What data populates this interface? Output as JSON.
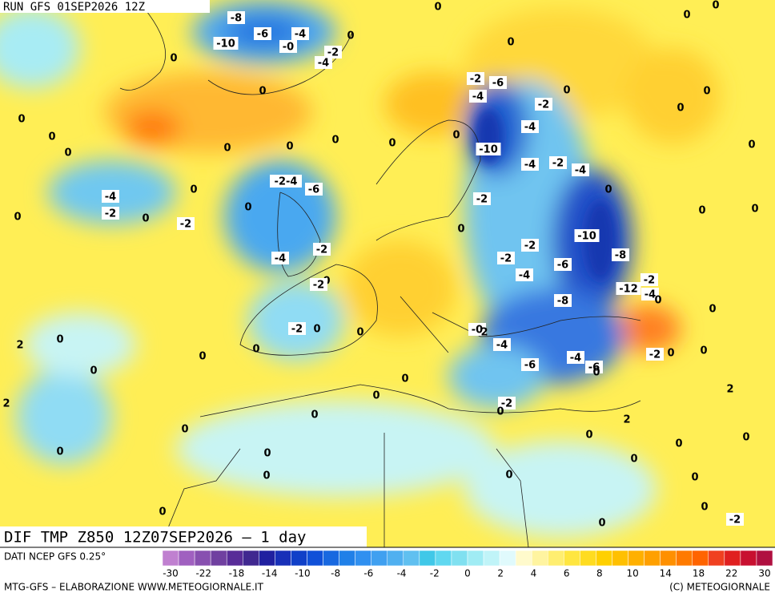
{
  "header": {
    "run": "RUN GFS 01SEP2026 12Z",
    "title": "DIF TMP Z850 12Z07SEP2026 – 1 day"
  },
  "map": {
    "contour_labels": [
      "-8",
      "0",
      "0",
      "0",
      "-10",
      "-6",
      "-4",
      "0",
      "-0",
      "-2",
      "-4",
      "0",
      "0",
      "0",
      "-2",
      "-6",
      "-4",
      "0",
      "0",
      "0",
      "-2",
      "0",
      "0",
      "-4",
      "0",
      "0",
      "0",
      "0",
      "0",
      "0",
      "-10",
      "0",
      "-4",
      "-2",
      "-4",
      "-2-4",
      "-6",
      "0",
      "0",
      "-4",
      "0",
      "-2",
      "-2",
      "0",
      "-2",
      "0",
      "0",
      "0",
      "0",
      "-10",
      "-2",
      "-2",
      "-8",
      "-4",
      "-2",
      "-6",
      "-4",
      "-2",
      "0",
      "-2",
      "-12",
      "-4",
      "0",
      "-8",
      "0",
      "-2",
      "0",
      "0",
      "-0",
      "2",
      "-4",
      "2",
      "0",
      "0",
      "0",
      "-2",
      "0",
      "0",
      "-4",
      "-6",
      "-6",
      "0",
      "0",
      "0",
      "2",
      "0",
      "2",
      "-2",
      "0",
      "0",
      "2",
      "0",
      "0",
      "0",
      "0",
      "0",
      "0",
      "0",
      "0",
      "0",
      "0",
      "0",
      "0",
      "0",
      "-2"
    ]
  },
  "legend": {
    "source": "DATI NCEP GFS 0.25°",
    "labels": [
      -30,
      -22,
      -18,
      -14,
      -10,
      -8,
      -6,
      -4,
      -2,
      0,
      2,
      4,
      6,
      8,
      10,
      14,
      18,
      22,
      30
    ],
    "colors": [
      "#c080d0",
      "#a060c0",
      "#8850b0",
      "#7040a0",
      "#582c98",
      "#402890",
      "#2020a0",
      "#1830b8",
      "#1040c8",
      "#1050d8",
      "#1868e0",
      "#2080e8",
      "#3090f0",
      "#40a0f0",
      "#50b0f0",
      "#60c0f0",
      "#40c8e8",
      "#60d8f0",
      "#80e0f0",
      "#a0ecf4",
      "#c0f4f8",
      "#e0fafc",
      "#fffacc",
      "#fff4a0",
      "#ffee70",
      "#ffe640",
      "#ffdc20",
      "#ffd000",
      "#ffc000",
      "#ffb000",
      "#ffa000",
      "#ff9000",
      "#ff7a00",
      "#ff6400",
      "#f04020",
      "#e02020",
      "#c81030",
      "#b01040"
    ]
  },
  "footer": {
    "left": "MTG-GFS – ELABORAZIONE WWW.METEOGIORNALE.IT",
    "right": "(C) METEOGIORNALE"
  }
}
